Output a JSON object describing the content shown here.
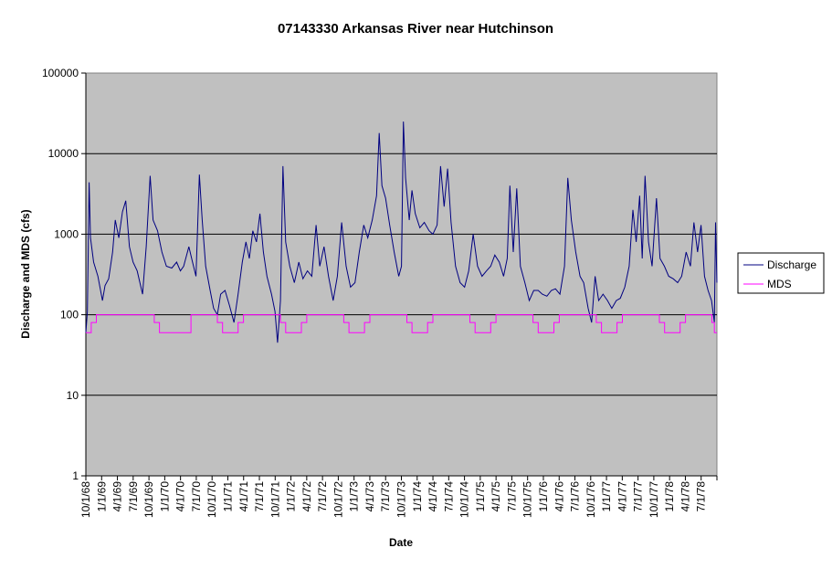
{
  "chart_data": {
    "type": "line",
    "title": "07143330 Arkansas River near Hutchinson",
    "xlabel": "Date",
    "ylabel": "Discharge and MDS (cfs)",
    "y_scale": "log",
    "ylim": [
      1,
      100000
    ],
    "y_ticks": [
      "1",
      "10",
      "100",
      "1000",
      "10000",
      "100000"
    ],
    "xlim": [
      "1968-10-01",
      "1978-09-30"
    ],
    "x_tick_labels": [
      "10/1/68",
      "1/1/69",
      "4/1/69",
      "7/1/69",
      "10/1/69",
      "1/1/70",
      "4/1/70",
      "7/1/70",
      "10/1/70",
      "1/1/71",
      "4/1/71",
      "7/1/71",
      "10/1/71",
      "1/1/72",
      "4/1/72",
      "7/1/72",
      "10/1/72",
      "1/1/73",
      "4/1/73",
      "7/1/73",
      "10/1/73",
      "1/1/74",
      "4/1/74",
      "7/1/74",
      "10/1/74",
      "1/1/75",
      "4/1/75",
      "7/1/75",
      "10/1/75",
      "1/1/76",
      "4/1/76",
      "7/1/76",
      "10/1/76",
      "1/1/77",
      "4/1/77",
      "7/1/77",
      "10/1/77",
      "1/1/78",
      "4/1/78",
      "7/1/78"
    ],
    "grid": "horizontal major lines",
    "legend_position": "right",
    "plot_background": "#c0c0c0",
    "series": [
      {
        "name": "Discharge",
        "color": "#000080",
        "points": [
          [
            "1968-10-01",
            60
          ],
          [
            "1968-10-10",
            110
          ],
          [
            "1968-10-20",
            4400
          ],
          [
            "1968-10-28",
            900
          ],
          [
            "1968-11-15",
            450
          ],
          [
            "1968-12-10",
            300
          ],
          [
            "1969-01-05",
            150
          ],
          [
            "1969-01-20",
            230
          ],
          [
            "1969-02-10",
            280
          ],
          [
            "1969-03-05",
            600
          ],
          [
            "1969-03-20",
            1500
          ],
          [
            "1969-04-10",
            900
          ],
          [
            "1969-05-01",
            1900
          ],
          [
            "1969-05-20",
            2600
          ],
          [
            "1969-06-10",
            700
          ],
          [
            "1969-07-01",
            450
          ],
          [
            "1969-07-25",
            350
          ],
          [
            "1969-08-25",
            180
          ],
          [
            "1969-09-15",
            700
          ],
          [
            "1969-10-08",
            5300
          ],
          [
            "1969-10-25",
            1500
          ],
          [
            "1969-11-20",
            1100
          ],
          [
            "1969-12-15",
            600
          ],
          [
            "1970-01-10",
            400
          ],
          [
            "1970-02-10",
            380
          ],
          [
            "1970-03-10",
            450
          ],
          [
            "1970-04-01",
            350
          ],
          [
            "1970-04-20",
            400
          ],
          [
            "1970-05-20",
            700
          ],
          [
            "1970-06-10",
            450
          ],
          [
            "1970-06-30",
            300
          ],
          [
            "1970-07-20",
            5500
          ],
          [
            "1970-08-05",
            1500
          ],
          [
            "1970-08-25",
            400
          ],
          [
            "1970-09-20",
            200
          ],
          [
            "1970-10-10",
            120
          ],
          [
            "1970-11-01",
            100
          ],
          [
            "1970-11-20",
            180
          ],
          [
            "1970-12-15",
            200
          ],
          [
            "1971-01-10",
            130
          ],
          [
            "1971-02-05",
            80
          ],
          [
            "1971-03-01",
            180
          ],
          [
            "1971-03-25",
            450
          ],
          [
            "1971-04-15",
            800
          ],
          [
            "1971-05-05",
            500
          ],
          [
            "1971-05-25",
            1100
          ],
          [
            "1971-06-15",
            800
          ],
          [
            "1971-07-05",
            1800
          ],
          [
            "1971-07-25",
            600
          ],
          [
            "1971-08-15",
            300
          ],
          [
            "1971-09-10",
            180
          ],
          [
            "1971-09-30",
            110
          ],
          [
            "1971-10-15",
            45
          ],
          [
            "1971-11-01",
            150
          ],
          [
            "1971-11-15",
            7000
          ],
          [
            "1971-12-01",
            800
          ],
          [
            "1971-12-25",
            400
          ],
          [
            "1972-01-20",
            250
          ],
          [
            "1972-02-15",
            450
          ],
          [
            "1972-03-10",
            280
          ],
          [
            "1972-04-05",
            350
          ],
          [
            "1972-04-30",
            300
          ],
          [
            "1972-05-25",
            1300
          ],
          [
            "1972-06-15",
            400
          ],
          [
            "1972-07-10",
            700
          ],
          [
            "1972-08-05",
            300
          ],
          [
            "1972-09-01",
            150
          ],
          [
            "1972-09-25",
            300
          ],
          [
            "1972-10-20",
            1400
          ],
          [
            "1972-11-15",
            400
          ],
          [
            "1972-12-10",
            220
          ],
          [
            "1973-01-05",
            250
          ],
          [
            "1973-01-30",
            600
          ],
          [
            "1973-02-25",
            1300
          ],
          [
            "1973-03-20",
            900
          ],
          [
            "1973-04-15",
            1500
          ],
          [
            "1973-05-10",
            3000
          ],
          [
            "1973-05-25",
            18000
          ],
          [
            "1973-06-10",
            4000
          ],
          [
            "1973-07-01",
            2800
          ],
          [
            "1973-07-25",
            1300
          ],
          [
            "1973-08-20",
            600
          ],
          [
            "1973-09-15",
            300
          ],
          [
            "1973-10-01",
            400
          ],
          [
            "1973-10-12",
            25000
          ],
          [
            "1973-10-25",
            5000
          ],
          [
            "1973-11-15",
            1500
          ],
          [
            "1973-12-01",
            3500
          ],
          [
            "1973-12-20",
            1800
          ],
          [
            "1974-01-15",
            1200
          ],
          [
            "1974-02-10",
            1400
          ],
          [
            "1974-03-10",
            1100
          ],
          [
            "1974-04-01",
            1000
          ],
          [
            "1974-04-25",
            1300
          ],
          [
            "1974-05-15",
            7000
          ],
          [
            "1974-06-05",
            2200
          ],
          [
            "1974-06-25",
            6500
          ],
          [
            "1974-07-15",
            1400
          ],
          [
            "1974-08-10",
            400
          ],
          [
            "1974-09-05",
            250
          ],
          [
            "1974-10-01",
            220
          ],
          [
            "1974-10-25",
            350
          ],
          [
            "1974-11-20",
            1000
          ],
          [
            "1974-12-15",
            400
          ],
          [
            "1975-01-10",
            300
          ],
          [
            "1975-02-05",
            350
          ],
          [
            "1975-03-01",
            400
          ],
          [
            "1975-03-25",
            550
          ],
          [
            "1975-04-20",
            450
          ],
          [
            "1975-05-15",
            300
          ],
          [
            "1975-06-05",
            500
          ],
          [
            "1975-06-20",
            4000
          ],
          [
            "1975-07-10",
            600
          ],
          [
            "1975-07-30",
            3700
          ],
          [
            "1975-08-20",
            400
          ],
          [
            "1975-09-15",
            250
          ],
          [
            "1975-10-10",
            150
          ],
          [
            "1975-11-05",
            200
          ],
          [
            "1975-12-01",
            200
          ],
          [
            "1975-12-25",
            180
          ],
          [
            "1976-01-20",
            170
          ],
          [
            "1976-02-15",
            200
          ],
          [
            "1976-03-10",
            210
          ],
          [
            "1976-04-05",
            180
          ],
          [
            "1976-05-01",
            400
          ],
          [
            "1976-05-20",
            5000
          ],
          [
            "1976-06-10",
            1500
          ],
          [
            "1976-07-05",
            600
          ],
          [
            "1976-07-30",
            300
          ],
          [
            "1976-08-20",
            250
          ],
          [
            "1976-09-15",
            120
          ],
          [
            "1976-10-05",
            80
          ],
          [
            "1976-10-25",
            300
          ],
          [
            "1976-11-15",
            150
          ],
          [
            "1976-12-10",
            180
          ],
          [
            "1977-01-05",
            150
          ],
          [
            "1977-01-30",
            120
          ],
          [
            "1977-02-25",
            150
          ],
          [
            "1977-03-20",
            160
          ],
          [
            "1977-04-15",
            220
          ],
          [
            "1977-05-10",
            400
          ],
          [
            "1977-06-01",
            2000
          ],
          [
            "1977-06-20",
            800
          ],
          [
            "1977-07-10",
            3000
          ],
          [
            "1977-07-25",
            500
          ],
          [
            "1977-08-10",
            5300
          ],
          [
            "1977-08-30",
            800
          ],
          [
            "1977-09-20",
            400
          ],
          [
            "1977-10-15",
            2800
          ],
          [
            "1977-11-05",
            500
          ],
          [
            "1977-11-30",
            400
          ],
          [
            "1977-12-25",
            300
          ],
          [
            "1978-01-20",
            280
          ],
          [
            "1978-02-15",
            250
          ],
          [
            "1978-03-10",
            300
          ],
          [
            "1978-04-05",
            600
          ],
          [
            "1978-04-30",
            400
          ],
          [
            "1978-05-20",
            1400
          ],
          [
            "1978-06-10",
            600
          ],
          [
            "1978-06-30",
            1300
          ],
          [
            "1978-07-20",
            300
          ],
          [
            "1978-08-10",
            200
          ],
          [
            "1978-08-30",
            150
          ],
          [
            "1978-09-15",
            80
          ],
          [
            "1978-09-22",
            1400
          ],
          [
            "1978-09-30",
            250
          ]
        ]
      },
      {
        "name": "MDS",
        "color": "#ff00ff",
        "step": true,
        "points": [
          [
            "1968-10-01",
            60
          ],
          [
            "1968-11-01",
            80
          ],
          [
            "1968-12-01",
            100
          ],
          [
            "1969-10-01",
            100
          ],
          [
            "1969-11-01",
            80
          ],
          [
            "1969-12-01",
            60
          ],
          [
            "1970-06-01",
            100
          ],
          [
            "1970-10-01",
            100
          ],
          [
            "1970-11-01",
            80
          ],
          [
            "1970-12-01",
            60
          ],
          [
            "1971-03-01",
            80
          ],
          [
            "1971-04-01",
            100
          ],
          [
            "1971-10-01",
            100
          ],
          [
            "1971-11-01",
            80
          ],
          [
            "1971-12-01",
            60
          ],
          [
            "1972-03-01",
            80
          ],
          [
            "1972-04-01",
            100
          ],
          [
            "1972-10-01",
            100
          ],
          [
            "1972-11-01",
            80
          ],
          [
            "1972-12-01",
            60
          ],
          [
            "1973-03-01",
            80
          ],
          [
            "1973-04-01",
            100
          ],
          [
            "1973-10-01",
            100
          ],
          [
            "1973-11-01",
            80
          ],
          [
            "1973-12-01",
            60
          ],
          [
            "1974-03-01",
            80
          ],
          [
            "1974-04-01",
            100
          ],
          [
            "1974-10-01",
            100
          ],
          [
            "1974-11-01",
            80
          ],
          [
            "1974-12-01",
            60
          ],
          [
            "1975-03-01",
            80
          ],
          [
            "1975-04-01",
            100
          ],
          [
            "1975-10-01",
            100
          ],
          [
            "1975-11-01",
            80
          ],
          [
            "1975-12-01",
            60
          ],
          [
            "1976-03-01",
            80
          ],
          [
            "1976-04-01",
            100
          ],
          [
            "1976-10-01",
            100
          ],
          [
            "1976-11-01",
            80
          ],
          [
            "1976-12-01",
            60
          ],
          [
            "1977-03-01",
            80
          ],
          [
            "1977-04-01",
            100
          ],
          [
            "1977-10-01",
            100
          ],
          [
            "1977-11-01",
            80
          ],
          [
            "1977-12-01",
            60
          ],
          [
            "1978-03-01",
            80
          ],
          [
            "1978-04-01",
            100
          ],
          [
            "1978-09-01",
            80
          ],
          [
            "1978-09-15",
            60
          ],
          [
            "1978-09-30",
            60
          ]
        ]
      }
    ]
  }
}
